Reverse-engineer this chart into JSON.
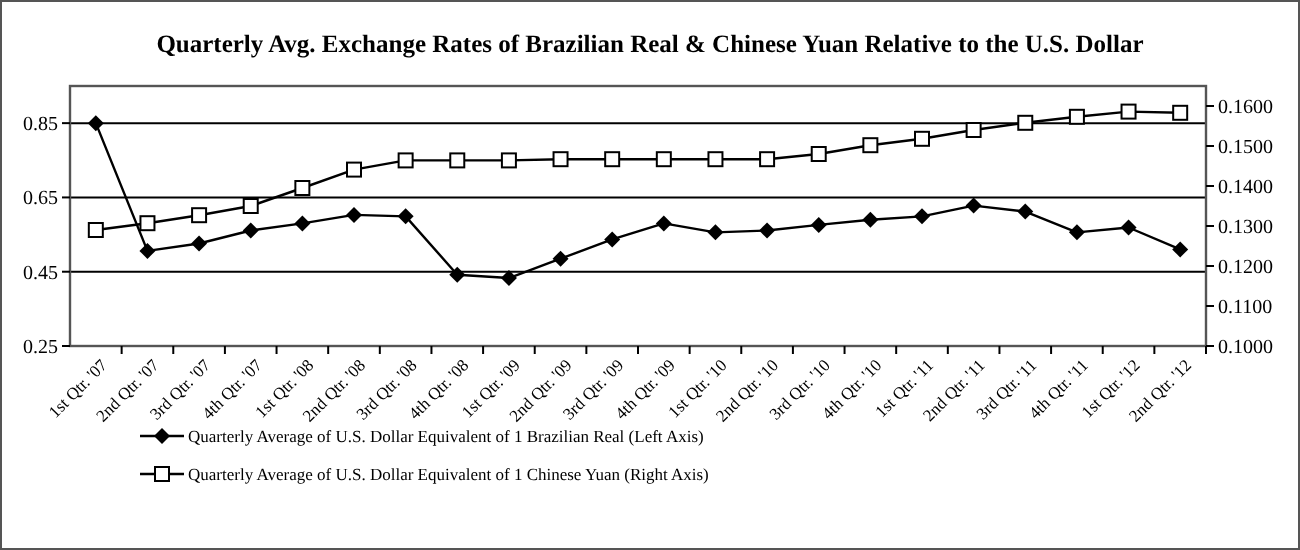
{
  "chart_data": {
    "type": "line",
    "title": "Quarterly Avg. Exchange Rates of Brazilian Real & Chinese Yuan Relative to the U.S. Dollar",
    "categories": [
      "1st Qtr. '07",
      "2nd Qtr. '07",
      "3rd Qtr. '07",
      "4th Qtr. '07",
      "1st Qtr. '08",
      "2nd Qtr. '08",
      "3rd Qtr. '08",
      "4th Qtr. '08",
      "1st Qtr. '09",
      "2nd Qtr. '09",
      "3rd Qtr. '09",
      "4th Qtr. '09",
      "1st Qtr. '10",
      "2nd Qtr. '10",
      "3rd Qtr. '10",
      "4th Qtr. '10",
      "1st Qtr. '11",
      "2nd Qtr. '11",
      "3rd Qtr. '11",
      "4th Qtr. '11",
      "1st Qtr. '12",
      "2nd Qtr. '12"
    ],
    "series": [
      {
        "name": "Quarterly Average of U.S. Dollar Equivalent of 1 Brazilian Real (Left Axis)",
        "color": "#000000",
        "marker": "diamond",
        "values": [
          0.85,
          0.506,
          0.526,
          0.561,
          0.58,
          0.603,
          0.599,
          0.442,
          0.433,
          0.485,
          0.537,
          0.58,
          0.556,
          0.561,
          0.576,
          0.59,
          0.599,
          0.628,
          0.612,
          0.556,
          0.569,
          0.51
        ]
      },
      {
        "name": "Quarterly Average of U.S. Dollar Equivalent of 1 Chinese Yuan (Right Axis)",
        "color": "#000000",
        "marker": "square",
        "axis": "y2",
        "values": [
          0.129,
          0.1307,
          0.1327,
          0.135,
          0.1395,
          0.1441,
          0.1464,
          0.1464,
          0.1464,
          0.1467,
          0.1467,
          0.1467,
          0.1467,
          0.1467,
          0.148,
          0.1502,
          0.1518,
          0.154,
          0.1558,
          0.1573,
          0.1586,
          0.1583
        ]
      }
    ],
    "ylim": [
      0.25,
      0.95
    ],
    "yticks": [
      {
        "value": 0.25,
        "label": "0.25"
      },
      {
        "value": 0.45,
        "label": "0.45"
      },
      {
        "value": 0.65,
        "label": "0.65"
      },
      {
        "value": 0.85,
        "label": "0.85"
      }
    ],
    "y2lim": [
      0.1,
      0.165
    ],
    "y2ticks": [
      {
        "value": 0.1,
        "label": "0.1000"
      },
      {
        "value": 0.11,
        "label": "0.1100"
      },
      {
        "value": 0.12,
        "label": "0.1200"
      },
      {
        "value": 0.13,
        "label": "0.1300"
      },
      {
        "value": 0.14,
        "label": "0.1400"
      },
      {
        "value": 0.15,
        "label": "0.1500"
      },
      {
        "value": 0.16,
        "label": "0.1600"
      }
    ],
    "grid": "y",
    "legend": "bottom"
  }
}
